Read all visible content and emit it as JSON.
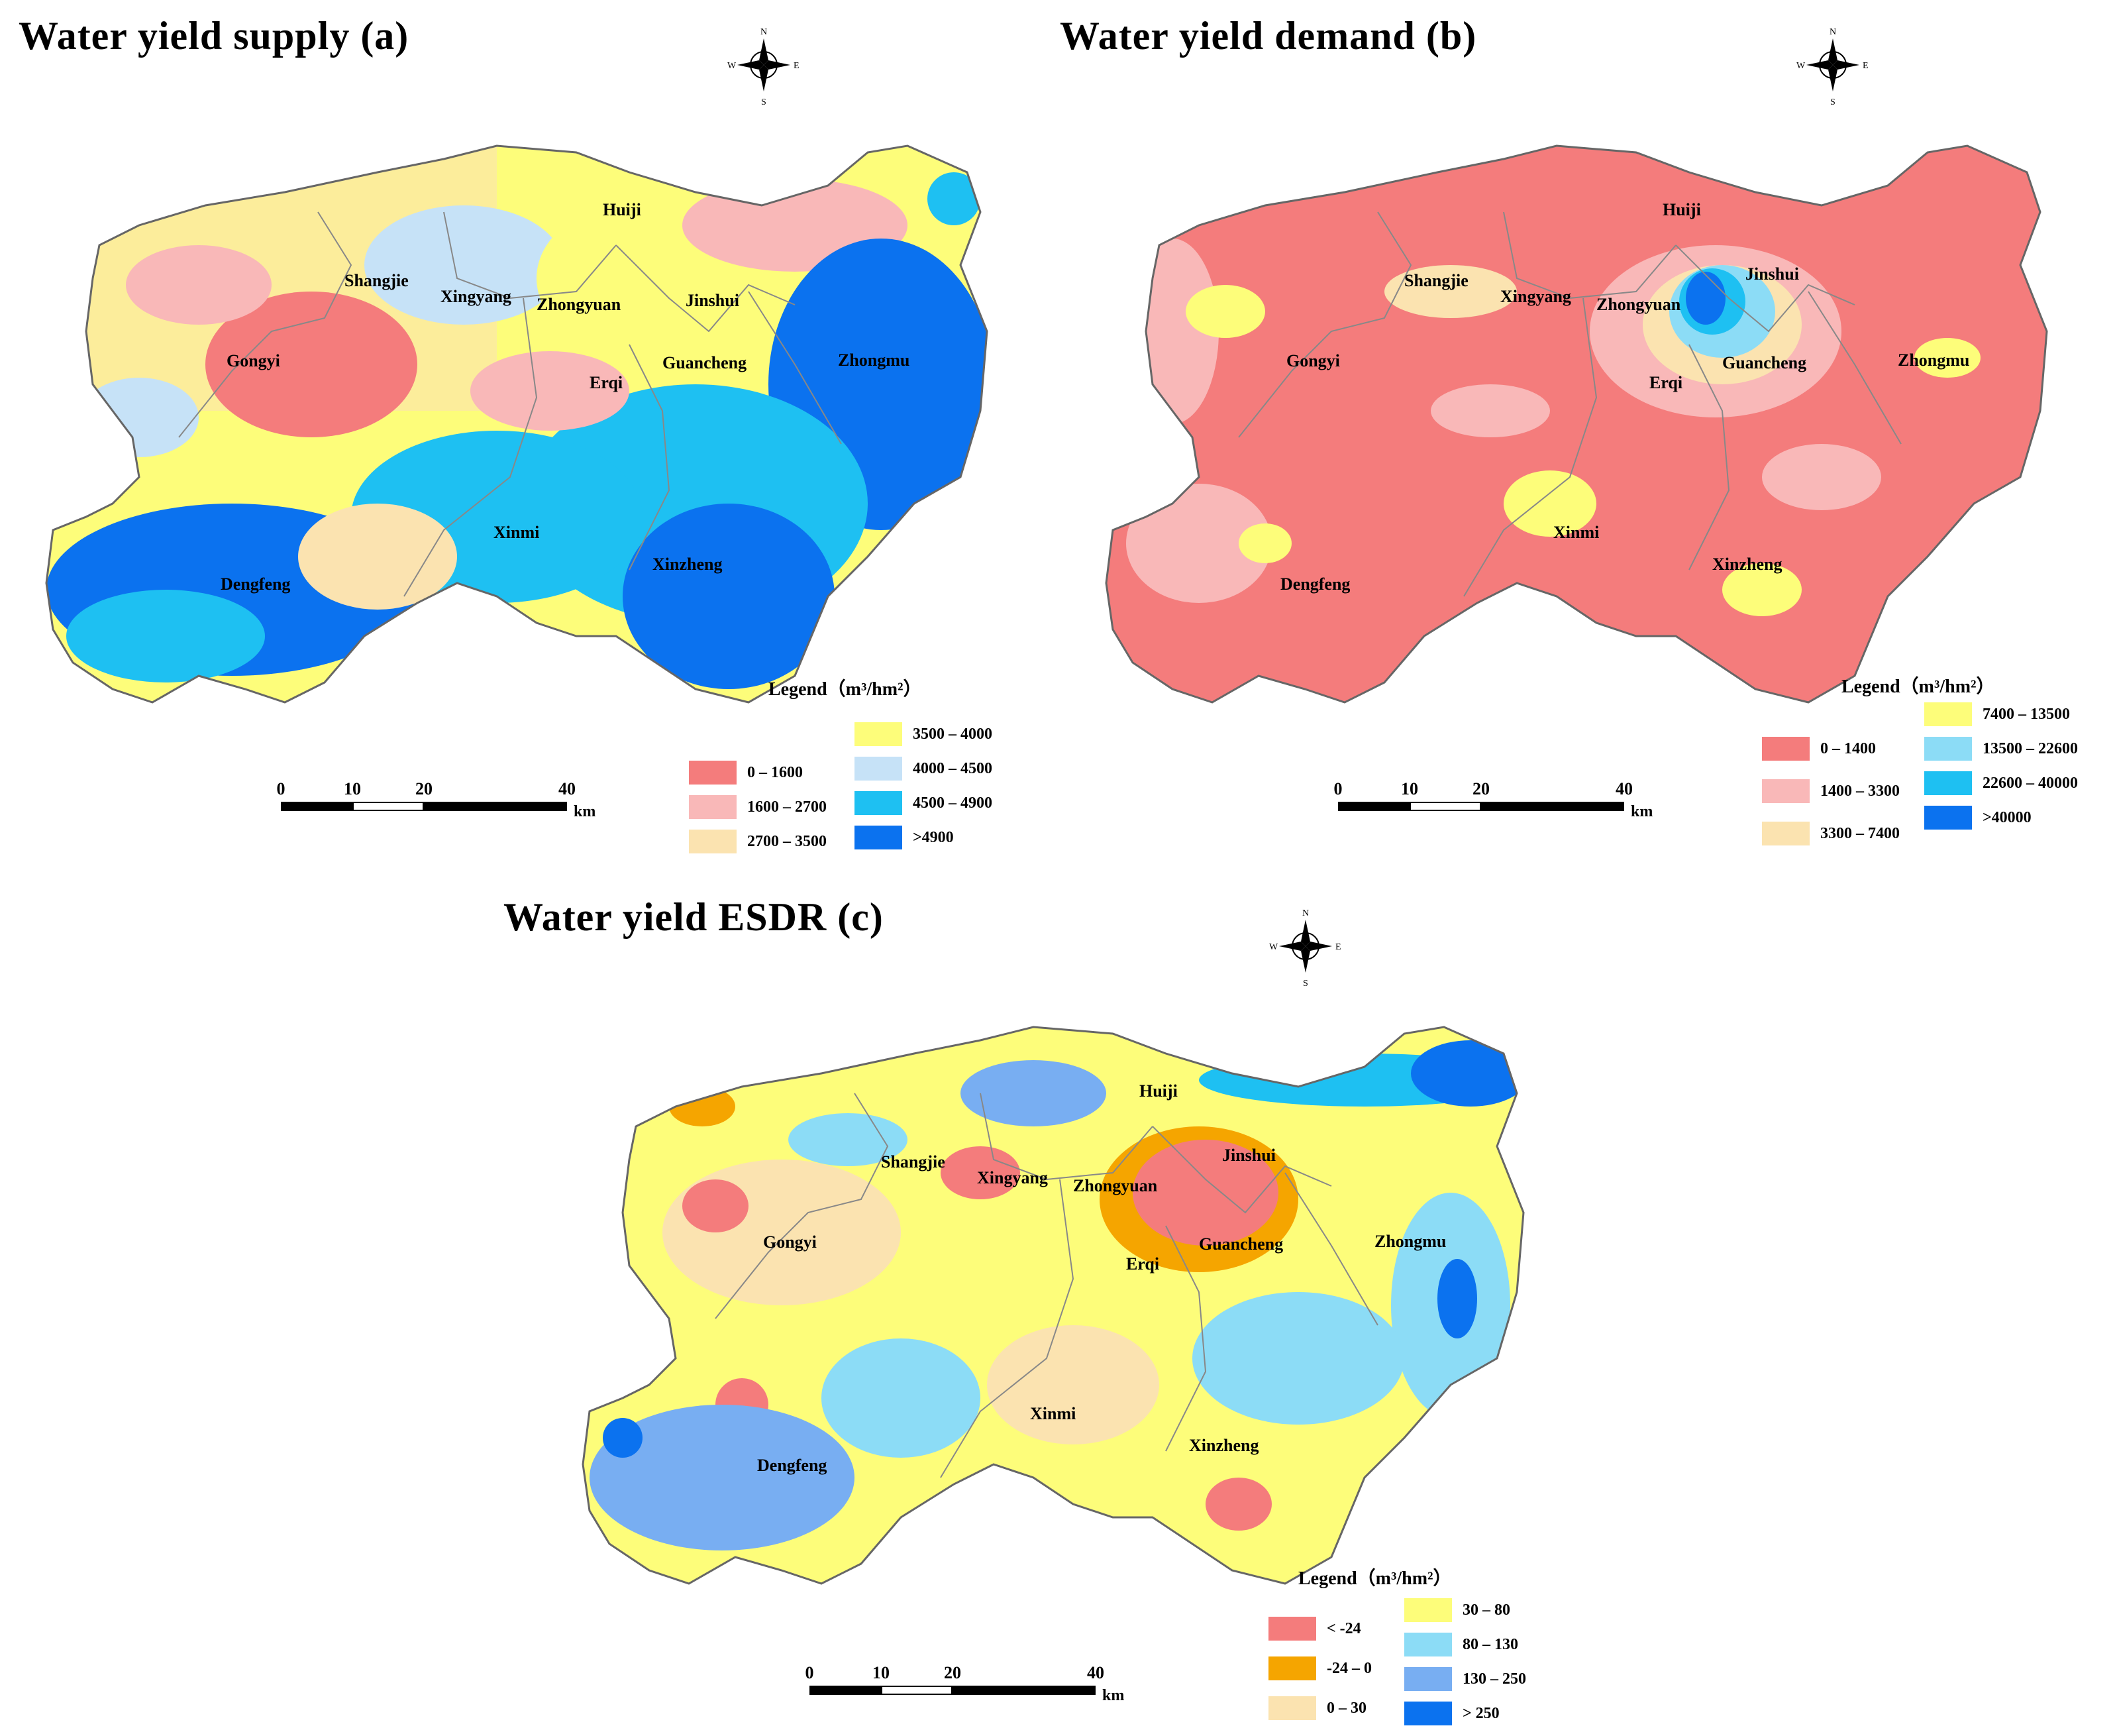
{
  "panels": {
    "a": {
      "title": "Water yield supply  (a)",
      "legend_title": "Legend（m³/hm²）",
      "legend": [
        {
          "label": "0 – 1600",
          "color": "#f47c7c"
        },
        {
          "label": "1600 – 2700",
          "color": "#f9b8b8"
        },
        {
          "label": "2700 – 3500",
          "color": "#fbe3b0"
        },
        {
          "label": "3500 – 4000",
          "color": "#fdfd7a"
        },
        {
          "label": "4000 – 4500",
          "color": "#c6e2f7"
        },
        {
          "label": "4500 – 4900",
          "color": "#1ec0f2"
        },
        {
          "label": ">4900",
          "color": "#0b72ef"
        }
      ],
      "scale": {
        "ticks": [
          "0",
          "10",
          "20",
          "40"
        ],
        "unit": "km"
      }
    },
    "b": {
      "title": "Water yield demand  (b)",
      "legend_title": "Legend（m³/hm²）",
      "legend": [
        {
          "label": "0 – 1400",
          "color": "#f47c7c"
        },
        {
          "label": "1400 – 3300",
          "color": "#f9b8b8"
        },
        {
          "label": "3300 – 7400",
          "color": "#fbe3b0"
        },
        {
          "label": "7400 – 13500",
          "color": "#fdfd7a"
        },
        {
          "label": "13500 – 22600",
          "color": "#8cdcf6"
        },
        {
          "label": "22600 – 40000",
          "color": "#1ec0f2"
        },
        {
          "label": ">40000",
          "color": "#0b72ef"
        }
      ],
      "scale": {
        "ticks": [
          "0",
          "10",
          "20",
          "40"
        ],
        "unit": "km"
      }
    },
    "c": {
      "title": "Water yield ESDR  (c)",
      "legend_title": "Legend（m³/hm²）",
      "legend": [
        {
          "label": "< -24",
          "color": "#f47c7c"
        },
        {
          "label": "-24 – 0",
          "color": "#f5a500"
        },
        {
          "label": "0 – 30",
          "color": "#fbe3b0"
        },
        {
          "label": "30 – 80",
          "color": "#fdfd7a"
        },
        {
          "label": "80 – 130",
          "color": "#8cdcf6"
        },
        {
          "label": "130 – 250",
          "color": "#78aef2"
        },
        {
          "label": "> 250",
          "color": "#0b72ef"
        }
      ],
      "scale": {
        "ticks": [
          "0",
          "10",
          "20",
          "40"
        ],
        "unit": "km"
      }
    }
  },
  "districts": [
    "Huiji",
    "Shangjie",
    "Xingyang",
    "Zhongyuan",
    "Jinshui",
    "Gongyi",
    "Erqi",
    "Guancheng",
    "Zhongmu",
    "Xinmi",
    "Dengfeng",
    "Xinzheng"
  ],
  "compass": {
    "n": "N",
    "s": "S",
    "e": "E",
    "w": "W"
  }
}
